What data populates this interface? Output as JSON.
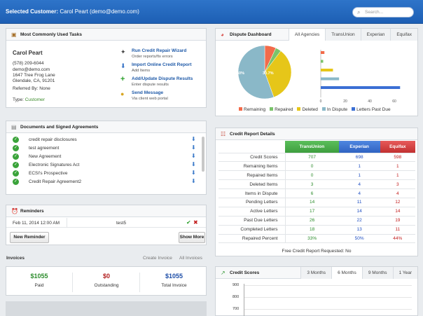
{
  "header": {
    "title_prefix": "Selected Customer:",
    "customer": "Carol Peart (demo@demo.com)",
    "search_placeholder": "Search..."
  },
  "tasks_panel": {
    "title": "Most Commonly Used Tasks",
    "customer": {
      "name": "Carol Peart",
      "phone": "(578) 209-6044",
      "email": "demo@demo.com",
      "address1": "1647 Tree Frog Lane",
      "address2": "Glendale, CA, 91201",
      "referred_by": "Referred By: None",
      "type_label": "Type:",
      "type_value": "Customer"
    },
    "tasks": [
      {
        "title": "Run Credit Repair Wizard",
        "sub": "Order reports/fix errors",
        "icon": "wand-icon"
      },
      {
        "title": "Import Online Credit Report",
        "sub": "Add Items",
        "icon": "import-icon"
      },
      {
        "title": "Add/Update Dispute Results",
        "sub": "Enter dispute results",
        "icon": "plus-icon"
      },
      {
        "title": "Send Message",
        "sub": "Via client web portal",
        "icon": "message-icon"
      }
    ]
  },
  "documents_panel": {
    "title": "Documents and Signed Agreements",
    "items": [
      "credit repair disclosures",
      "test agreement",
      "New Agreement",
      "Electronic Signatures Act",
      "ECSI's Prospective",
      "Credit Repair Agreement2"
    ]
  },
  "reminders_panel": {
    "title": "Reminders",
    "date": "Feb 11, 2014 12:00 AM",
    "text": "test5",
    "new_button": "New Reminder",
    "more_button": "Show More"
  },
  "invoices": {
    "title": "Invoices",
    "create_link": "Create Invoice",
    "all_link": "All Invoices",
    "paid_value": "$1055",
    "paid_label": "Paid",
    "outstanding_value": "$0",
    "outstanding_label": "Outstanding",
    "total_value": "$1055",
    "total_label": "Total Invoice"
  },
  "dispute_dashboard": {
    "title": "Dispute Dashboard",
    "tabs": [
      "All Agencies",
      "TransUnion",
      "Experian",
      "Equifax"
    ],
    "active_tab": "All Agencies",
    "pie_label_large": "50%",
    "pie_label_small": "30.7%",
    "bar_ticks": [
      "0",
      "20",
      "40",
      "60"
    ],
    "legend": [
      {
        "label": "Remaining",
        "color": "#f26b4a"
      },
      {
        "label": "Repaired",
        "color": "#7ac36a"
      },
      {
        "label": "Deleted",
        "color": "#e6c619"
      },
      {
        "label": "In Dispute",
        "color": "#8ab8c8"
      },
      {
        "label": "Letters Past Due",
        "color": "#3b6fd4"
      }
    ]
  },
  "chart_data": {
    "type": "bar",
    "categories": [
      "Remaining",
      "Repaired",
      "Deleted",
      "In Dispute",
      "Letters Past Due"
    ],
    "values": [
      3,
      2,
      10,
      15,
      65
    ],
    "xlim": [
      0,
      70
    ],
    "pie": [
      {
        "label": "Remaining",
        "value": 6.2
      },
      {
        "label": "Repaired",
        "value": 3.1
      },
      {
        "label": "Deleted",
        "value": 30.7
      },
      {
        "label": "In Dispute",
        "value": 50
      }
    ]
  },
  "credit_report": {
    "title": "Credit Report Details",
    "columns": [
      "TransUnion",
      "Experian",
      "Equifax"
    ],
    "rows": [
      {
        "label": "Credit Scores",
        "tu": "707",
        "ex": "698",
        "eq": "598"
      },
      {
        "label": "Remaining Items",
        "tu": "0",
        "ex": "1",
        "eq": "1"
      },
      {
        "label": "Repaired Items",
        "tu": "0",
        "ex": "1",
        "eq": "1"
      },
      {
        "label": "Deleted Items",
        "tu": "3",
        "ex": "4",
        "eq": "3"
      },
      {
        "label": "Items in Dispute",
        "tu": "6",
        "ex": "4",
        "eq": "4"
      },
      {
        "label": "Pending Letters",
        "tu": "14",
        "ex": "11",
        "eq": "12"
      },
      {
        "label": "Active Letters",
        "tu": "17",
        "ex": "14",
        "eq": "14"
      },
      {
        "label": "Past Due Letters",
        "tu": "26",
        "ex": "22",
        "eq": "19"
      },
      {
        "label": "Completed Letters",
        "tu": "18",
        "ex": "13",
        "eq": "11"
      },
      {
        "label": "Repaired Percent",
        "tu": "33%",
        "ex": "50%",
        "eq": "44%"
      }
    ],
    "footer": "Free Credit Report Requested: No"
  },
  "credit_scores": {
    "title": "Credit Scores",
    "tabs": [
      "3 Months",
      "6 Months",
      "9 Months",
      "1 Year"
    ],
    "active_tab": "6 Months",
    "y_ticks": [
      "900",
      "800",
      "700"
    ]
  }
}
